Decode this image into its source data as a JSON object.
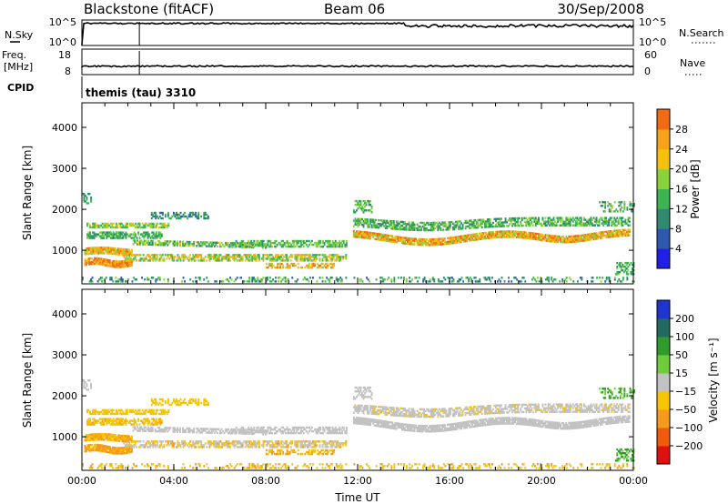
{
  "header": {
    "station": "Blackstone (fitACF)",
    "beam": "Beam 06",
    "date": "30/Sep/2008"
  },
  "top_panels": {
    "nsky_label": "N.Sky",
    "nsky_ticks": [
      "10^5",
      "10^0"
    ],
    "nsearch_label": "N.Search",
    "freq_label_1": "Freq.",
    "freq_label_2": "[MHz]",
    "freq_ticks": [
      "18",
      "8"
    ],
    "nave_ticks": [
      "60",
      "0"
    ],
    "nave_label": "Nave",
    "cpid_label": "CPID",
    "cpid_value": "themis (tau) 3310"
  },
  "colors": {
    "power_scale": [
      "#1f1fe6",
      "#2d58b0",
      "#2f8a70",
      "#3cb451",
      "#8ad23a",
      "#f4c20d",
      "#f7a21a",
      "#f26a12",
      "#e12a0c",
      "#cc0000"
    ],
    "velocity_scale": [
      "#2034d0",
      "#236b62",
      "#2e9b2c",
      "#6fcc3b",
      "#c2c2c2",
      "#f7c400",
      "#f59a1a",
      "#f05a0a",
      "#e01010"
    ]
  },
  "chart_data": [
    {
      "type": "heatmap",
      "name": "power",
      "ylabel": "Slant Range [km]",
      "xlabel": "",
      "x_range_hours": [
        0,
        24
      ],
      "ylim": [
        180,
        4600
      ],
      "yticks": [
        "1000",
        "2000",
        "3000",
        "4000"
      ],
      "colorbar_label": "Power [dB]",
      "colorbar_ticks": [
        "4",
        "8",
        "12",
        "16",
        "20",
        "24",
        "28"
      ],
      "colorbar_range": [
        0,
        32
      ]
    },
    {
      "type": "heatmap",
      "name": "velocity",
      "ylabel": "Slant Range [km]",
      "xlabel": "Time UT",
      "x_range_hours": [
        0,
        24
      ],
      "xticks": [
        "00:00",
        "04:00",
        "08:00",
        "12:00",
        "16:00",
        "20:00",
        "00:00"
      ],
      "ylim": [
        180,
        4600
      ],
      "yticks": [
        "1000",
        "2000",
        "3000",
        "4000"
      ],
      "colorbar_label": "Velocity [m s⁻¹]",
      "colorbar_ticks": [
        "200",
        "100",
        "50",
        "15",
        "−15",
        "−50",
        "−100",
        "−200"
      ]
    }
  ]
}
